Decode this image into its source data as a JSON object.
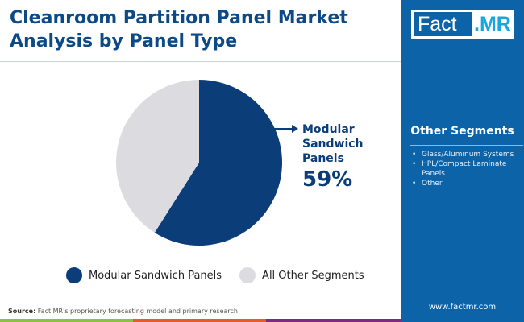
{
  "title": "Cleanroom Partition Panel Market Analysis by Panel Type",
  "logo": {
    "left": "Fact",
    "right": ".MR"
  },
  "sidebar": {
    "heading": "Other Segments",
    "items": [
      "Glass/Aluminum Systems",
      "HPL/Compact Laminate Panels",
      "Other"
    ],
    "url": "www.factmr.com"
  },
  "chart_data": {
    "type": "pie",
    "slices": [
      {
        "name": "Modular Sandwich Panels",
        "value": 59,
        "color": "#0b3d78"
      },
      {
        "name": "All Other Segments",
        "value": 41,
        "color": "#dcdbdf"
      }
    ],
    "callout": {
      "label": "Modular Sandwich Panels",
      "value": "59%"
    },
    "legend": "bottom"
  },
  "source": {
    "label": "Source:",
    "text": " Fact.MR's proprietary forecasting model and primary research"
  },
  "colors": {
    "brand": "#0c63a8",
    "bars": [
      "#8bc043",
      "#e65b2a",
      "#7f2a80",
      "#0c63a8"
    ]
  }
}
